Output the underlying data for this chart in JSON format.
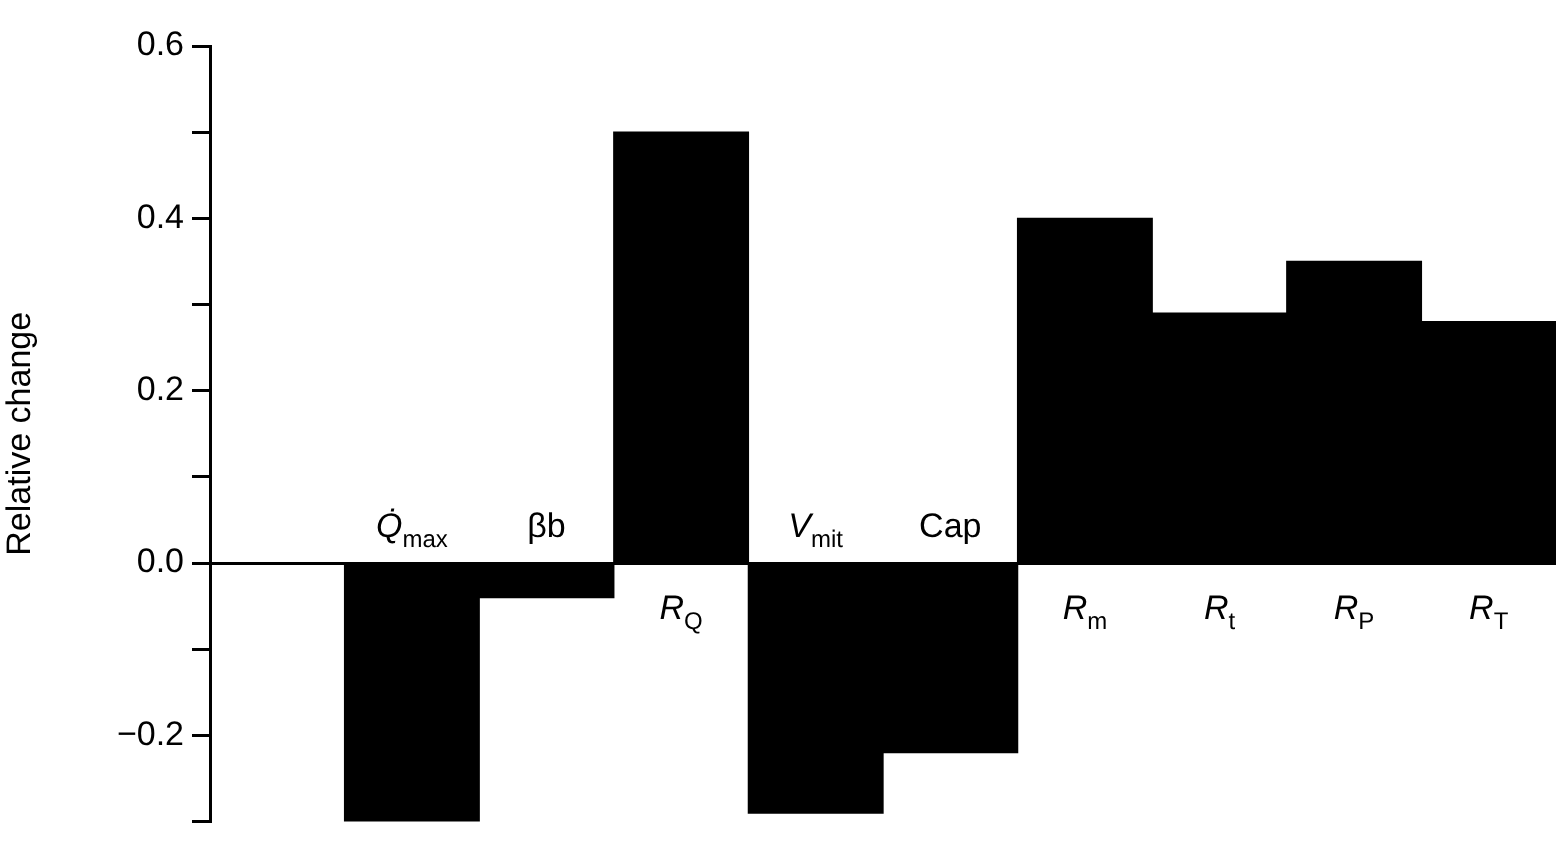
{
  "chart_data": {
    "type": "bar",
    "ylabel": "Relative change",
    "categories": [
      null,
      "Q̇$_{max}$",
      "βb",
      "R$_{Q}$",
      "V$_{mit}$",
      "Cap",
      "R$_{m}$",
      "R$_{t}$",
      "R$_{P}$",
      "R$_{T}$"
    ],
    "values": [
      null,
      -0.3,
      -0.04,
      0.5,
      -0.29,
      -0.22,
      0.4,
      0.29,
      0.35,
      0.28
    ],
    "color": "#000000",
    "ylim": [
      -0.3,
      0.6
    ],
    "yticks": [
      {
        "value": -0.3,
        "label": null
      },
      {
        "value": -0.2,
        "label": "−0.2"
      },
      {
        "value": -0.1,
        "label": null
      },
      {
        "value": 0,
        "label": "0.0"
      },
      {
        "value": 0.1,
        "label": null
      },
      {
        "value": 0.2,
        "label": "0.2"
      },
      {
        "value": 0.3,
        "label": null
      },
      {
        "value": 0.4,
        "label": "0.4"
      },
      {
        "value": 0.5,
        "label": null
      },
      {
        "value": 0.6,
        "label": "0.6"
      }
    ]
  }
}
